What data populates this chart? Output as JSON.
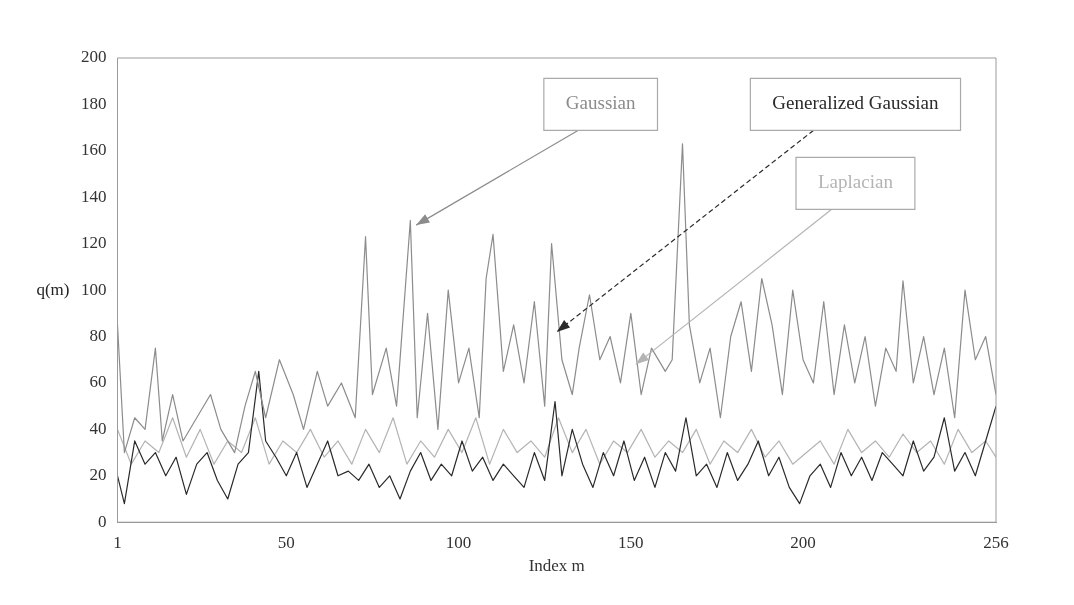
{
  "chart_data": {
    "type": "line",
    "xlabel": "Index m",
    "ylabel": "q(m)",
    "xlim": [
      1,
      256
    ],
    "xticks": [
      1,
      50,
      100,
      150,
      200,
      256
    ],
    "ylim": [
      0,
      200
    ],
    "yticks": [
      0,
      20,
      40,
      60,
      80,
      100,
      120,
      140,
      160,
      180,
      200
    ],
    "grid": false,
    "legend": false,
    "marker": "none",
    "line_style": "solid",
    "series": [
      {
        "name": "Gaussian",
        "color": "#8c8c8c",
        "x": [
          1,
          3,
          6,
          9,
          12,
          14,
          17,
          20,
          24,
          28,
          31,
          35,
          38,
          41,
          44,
          48,
          52,
          55,
          59,
          62,
          66,
          70,
          73,
          75,
          79,
          82,
          86,
          88,
          91,
          94,
          97,
          100,
          103,
          106,
          108,
          110,
          113,
          116,
          119,
          122,
          125,
          127,
          130,
          133,
          135,
          138,
          141,
          144,
          147,
          150,
          153,
          156,
          160,
          162,
          165,
          167,
          170,
          173,
          176,
          179,
          182,
          185,
          188,
          191,
          194,
          197,
          200,
          203,
          206,
          209,
          212,
          215,
          218,
          221,
          224,
          227,
          229,
          232,
          235,
          238,
          241,
          244,
          247,
          250,
          253,
          256
        ],
        "values": [
          85,
          30,
          45,
          40,
          75,
          35,
          55,
          35,
          45,
          55,
          40,
          30,
          50,
          65,
          45,
          70,
          55,
          40,
          65,
          50,
          60,
          45,
          123,
          55,
          75,
          50,
          130,
          45,
          90,
          40,
          100,
          60,
          75,
          45,
          105,
          124,
          65,
          85,
          60,
          95,
          50,
          120,
          70,
          55,
          75,
          98,
          70,
          80,
          60,
          90,
          55,
          75,
          65,
          70,
          163,
          85,
          60,
          75,
          45,
          80,
          95,
          65,
          105,
          85,
          55,
          100,
          70,
          60,
          95,
          55,
          85,
          60,
          80,
          50,
          75,
          65,
          104,
          60,
          80,
          55,
          75,
          45,
          100,
          70,
          80,
          55
        ]
      },
      {
        "name": "Generalized Gaussian",
        "color": "#2a2a2a",
        "x": [
          1,
          3,
          6,
          9,
          12,
          15,
          18,
          21,
          24,
          27,
          30,
          33,
          36,
          39,
          42,
          44,
          47,
          50,
          53,
          56,
          59,
          62,
          65,
          68,
          71,
          74,
          77,
          80,
          83,
          86,
          89,
          92,
          95,
          98,
          101,
          104,
          107,
          110,
          113,
          116,
          119,
          122,
          125,
          128,
          130,
          133,
          136,
          139,
          142,
          145,
          148,
          151,
          154,
          157,
          160,
          163,
          166,
          169,
          172,
          175,
          178,
          181,
          184,
          187,
          190,
          193,
          196,
          199,
          202,
          205,
          208,
          211,
          214,
          217,
          220,
          223,
          226,
          229,
          232,
          235,
          238,
          241,
          244,
          247,
          250,
          253,
          256
        ],
        "values": [
          20,
          8,
          35,
          25,
          30,
          20,
          28,
          12,
          25,
          30,
          18,
          10,
          25,
          30,
          65,
          35,
          28,
          20,
          30,
          15,
          25,
          35,
          20,
          22,
          18,
          25,
          15,
          20,
          10,
          22,
          30,
          18,
          25,
          20,
          35,
          22,
          28,
          18,
          25,
          20,
          15,
          30,
          18,
          52,
          20,
          40,
          25,
          15,
          30,
          20,
          35,
          18,
          28,
          15,
          30,
          22,
          45,
          20,
          25,
          15,
          30,
          18,
          25,
          35,
          20,
          28,
          15,
          8,
          20,
          25,
          15,
          30,
          20,
          28,
          18,
          30,
          25,
          20,
          35,
          22,
          28,
          45,
          22,
          30,
          20,
          35,
          50
        ]
      },
      {
        "name": "Laplacian",
        "color": "#b4b4b4",
        "x": [
          1,
          5,
          9,
          13,
          17,
          21,
          25,
          29,
          33,
          37,
          41,
          45,
          49,
          53,
          57,
          61,
          65,
          69,
          73,
          77,
          81,
          85,
          89,
          93,
          97,
          101,
          105,
          109,
          113,
          117,
          121,
          125,
          129,
          133,
          137,
          141,
          145,
          149,
          153,
          157,
          161,
          165,
          169,
          173,
          177,
          181,
          185,
          189,
          193,
          197,
          201,
          205,
          209,
          213,
          217,
          221,
          225,
          229,
          233,
          237,
          241,
          245,
          249,
          253,
          256
        ],
        "values": [
          40,
          25,
          35,
          30,
          45,
          28,
          40,
          25,
          35,
          30,
          45,
          25,
          35,
          30,
          40,
          28,
          35,
          25,
          40,
          30,
          45,
          25,
          35,
          28,
          40,
          30,
          45,
          25,
          40,
          30,
          35,
          28,
          45,
          30,
          40,
          25,
          35,
          30,
          40,
          28,
          35,
          30,
          40,
          25,
          35,
          30,
          40,
          28,
          35,
          25,
          30,
          35,
          25,
          40,
          30,
          35,
          28,
          38,
          30,
          35,
          25,
          40,
          30,
          35,
          28
        ]
      }
    ]
  }
}
